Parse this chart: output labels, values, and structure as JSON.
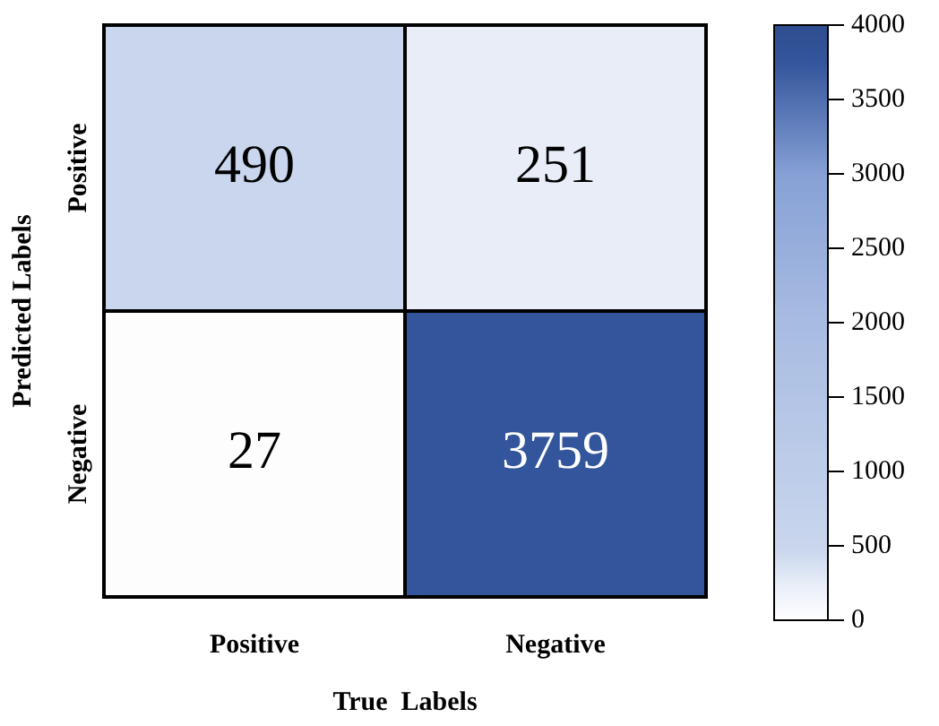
{
  "chart_data": {
    "type": "heatmap",
    "categories": [
      "Positive",
      "Negative"
    ],
    "y_categories": [
      "Positive",
      "Negative"
    ],
    "cells": [
      [
        490,
        251
      ],
      [
        27,
        3759
      ]
    ],
    "xlabel": "True  Labels",
    "ylabel": "Predicted Labels",
    "clim": [
      0,
      4000
    ],
    "cticks": [
      0,
      500,
      1000,
      1500,
      2000,
      2500,
      3000,
      3500,
      4000
    ],
    "data_labels": true
  }
}
